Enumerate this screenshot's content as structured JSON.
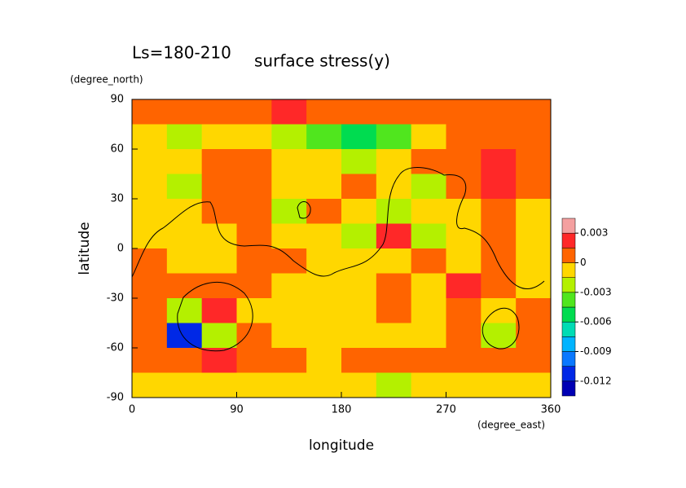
{
  "chart_data": {
    "type": "contour",
    "subtitle": "Ls=180-210",
    "title": "surface stress(y)",
    "x_label": "longitude",
    "x_unit": "(degree_east)",
    "y_label": "latitude",
    "y_unit": "(degree_north)",
    "x": [
      15,
      45,
      75,
      105,
      135,
      165,
      195,
      225,
      255,
      285,
      315,
      345
    ],
    "y": [
      82.5,
      67.5,
      52.5,
      37.5,
      22.5,
      7.5,
      -7.5,
      -22.5,
      -37.5,
      -52.5,
      -67.5,
      -82.5
    ],
    "z": [
      [
        0.001,
        0.001,
        0.001,
        0.001,
        0.002,
        0.001,
        0.001,
        0.001,
        0.001,
        0.001,
        0.001,
        0.001
      ],
      [
        -0.0007,
        -0.002,
        -0.0007,
        -0.0007,
        -0.002,
        -0.0035,
        -0.005,
        -0.0035,
        -0.0007,
        0.001,
        0.001,
        0.001
      ],
      [
        -0.0007,
        -0.0007,
        0.001,
        0.001,
        -0.0007,
        -0.0007,
        -0.002,
        -0.0007,
        0.001,
        0.001,
        0.002,
        0.001
      ],
      [
        -0.0007,
        -0.002,
        0.001,
        0.001,
        -0.0007,
        -0.0007,
        0.001,
        -0.0007,
        -0.002,
        0.001,
        0.002,
        0.001
      ],
      [
        -0.0007,
        -0.0007,
        0.001,
        0.001,
        -0.002,
        0.001,
        -0.0007,
        -0.002,
        -0.0007,
        -0.0007,
        0.001,
        -0.0007
      ],
      [
        -0.0007,
        -0.0007,
        -0.0007,
        0.001,
        -0.0007,
        -0.0007,
        -0.002,
        0.002,
        -0.002,
        -0.0007,
        0.001,
        -0.0007
      ],
      [
        0.001,
        -0.0007,
        -0.0007,
        0.001,
        0.001,
        -0.0007,
        -0.0007,
        -0.0007,
        0.001,
        -0.0007,
        0.001,
        -0.0007
      ],
      [
        0.001,
        0.001,
        0.001,
        0.001,
        -0.0007,
        -0.0007,
        -0.0007,
        0.001,
        -0.0007,
        0.002,
        0.001,
        -0.0007
      ],
      [
        0.001,
        -0.002,
        0.002,
        -0.0007,
        -0.0007,
        -0.0007,
        -0.0007,
        0.001,
        -0.0007,
        0.001,
        -0.0007,
        0.001
      ],
      [
        0.001,
        -0.011,
        -0.003,
        0.001,
        -0.0007,
        -0.0007,
        -0.0007,
        -0.0007,
        -0.0007,
        0.001,
        -0.002,
        0.001
      ],
      [
        0.001,
        0.001,
        0.002,
        0.001,
        0.001,
        -0.0007,
        0.001,
        0.001,
        0.001,
        0.001,
        0.001,
        0.001
      ],
      [
        -0.0007,
        -0.0007,
        -0.0007,
        -0.0007,
        -0.0007,
        -0.0007,
        -0.0007,
        -0.002,
        -0.0007,
        -0.0007,
        -0.0007,
        -0.0007
      ]
    ],
    "levels": [
      -0.0135,
      -0.012,
      -0.0105,
      -0.009,
      -0.0075,
      -0.006,
      -0.0045,
      -0.003,
      -0.0015,
      0,
      0.0015,
      0.003,
      0.0045
    ],
    "colors": [
      "#3a0a80",
      "#0000b4",
      "#0028e6",
      "#0a78ff",
      "#00b4ff",
      "#00dcb4",
      "#00dc50",
      "#50e61e",
      "#b4f000",
      "#ffd700",
      "#ff6400",
      "#ff2828",
      "#f4a0a0"
    ],
    "xlim": [
      0,
      360
    ],
    "xticks": [
      0,
      90,
      180,
      270,
      360
    ],
    "ylim": [
      -90,
      90
    ],
    "yticks": [
      90,
      60,
      30,
      0,
      -30,
      -60,
      -90
    ],
    "colorbar_ticks": [
      0.003,
      0,
      -0.003,
      -0.006,
      -0.009,
      -0.012
    ]
  }
}
